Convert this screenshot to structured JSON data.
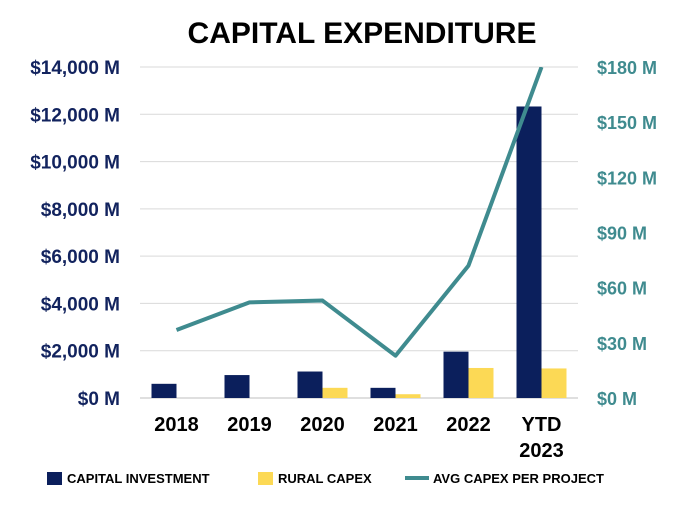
{
  "chart_data": {
    "type": "bar",
    "title": "CAPITAL EXPENDITURE",
    "categories": [
      {
        "line1": "2018",
        "line2": ""
      },
      {
        "line1": "2019",
        "line2": ""
      },
      {
        "line1": "2020",
        "line2": ""
      },
      {
        "line1": "2021",
        "line2": ""
      },
      {
        "line1": "2022",
        "line2": ""
      },
      {
        "line1": "YTD",
        "line2": "2023"
      }
    ],
    "series": [
      {
        "name": "CAPITAL INVESTMENT",
        "type": "bar",
        "axis": "left",
        "color": "#0b1f5c",
        "values": [
          600,
          970,
          1120,
          430,
          1960,
          12330
        ]
      },
      {
        "name": "RURAL CAPEX",
        "type": "bar",
        "axis": "left",
        "color": "#fcd955",
        "values": [
          0,
          0,
          430,
          160,
          1270,
          1250
        ]
      },
      {
        "name": "AVG CAPEX PER PROJECT",
        "type": "line",
        "axis": "right",
        "color": "#3f8b8f",
        "values": [
          37,
          52,
          53,
          23,
          72,
          180
        ]
      }
    ],
    "left_axis": {
      "range": [
        0,
        14000
      ],
      "ticks": [
        0,
        2000,
        4000,
        6000,
        8000,
        10000,
        12000,
        14000
      ],
      "tick_labels": [
        "$0 M",
        "$2,000 M",
        "$4,000 M",
        "$6,000 M",
        "$8,000 M",
        "$10,000 M",
        "$12,000 M",
        "$14,000 M"
      ]
    },
    "right_axis": {
      "range": [
        0,
        180
      ],
      "ticks": [
        0,
        30,
        60,
        90,
        120,
        150,
        180
      ],
      "tick_labels": [
        "$0 M",
        "$30 M",
        "$60 M",
        "$90 M",
        "$120 M",
        "$150 M",
        "$180 M"
      ]
    },
    "grid": true,
    "legend_position": "bottom"
  }
}
